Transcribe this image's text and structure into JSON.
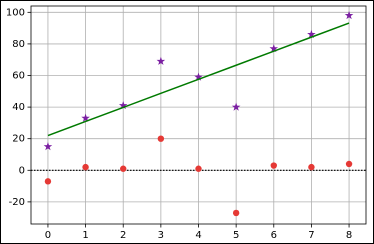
{
  "chart_data": {
    "type": "scatter",
    "x": [
      0,
      1,
      2,
      3,
      4,
      5,
      6,
      7,
      8
    ],
    "series": [
      {
        "marker": "star",
        "color": "#7b1fa2",
        "values": [
          15,
          33,
          41,
          69,
          59,
          40,
          77,
          86,
          98
        ]
      },
      {
        "marker": "circle",
        "color": "#e53935",
        "values": [
          -7,
          2,
          1,
          20,
          1,
          -27,
          3,
          2,
          4
        ]
      },
      {
        "marker": "line",
        "color": "#007a00",
        "values": [
          22,
          30.9,
          39.8,
          48.7,
          57.6,
          66.5,
          75.4,
          84.3,
          93.2
        ]
      }
    ],
    "hline": 0,
    "xlim": [
      -0.45,
      8.45
    ],
    "ylim": [
      -34,
      104
    ],
    "xticks": [
      0,
      1,
      2,
      3,
      4,
      5,
      6,
      7,
      8
    ],
    "yticks": [
      -20,
      0,
      20,
      40,
      60,
      80,
      100
    ],
    "grid": true
  }
}
